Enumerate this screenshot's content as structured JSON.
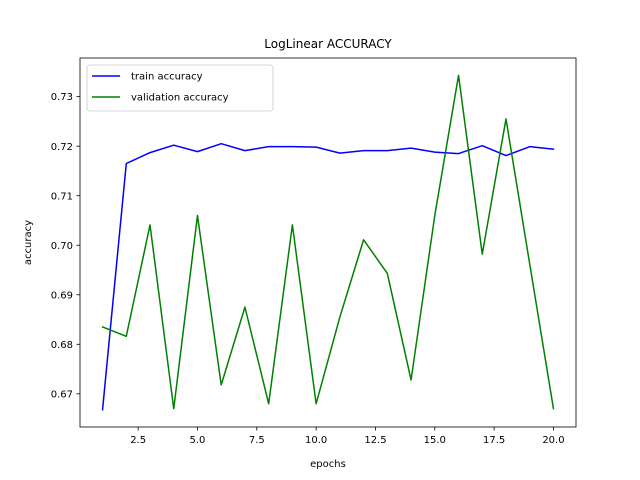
{
  "chart_data": {
    "type": "line",
    "title": "LogLinear ACCURACY",
    "xlabel": "epochs",
    "ylabel": "accuracy",
    "x": [
      1,
      2,
      3,
      4,
      5,
      6,
      7,
      8,
      9,
      10,
      11,
      12,
      13,
      14,
      15,
      16,
      17,
      18,
      19,
      20
    ],
    "xlim": [
      0.05,
      20.95
    ],
    "ylim": [
      0.6633,
      0.7378
    ],
    "xticks": [
      "2.5",
      "5.0",
      "7.5",
      "10.0",
      "12.5",
      "15.0",
      "17.5",
      "20.0"
    ],
    "xtick_values": [
      2.5,
      5.0,
      7.5,
      10.0,
      12.5,
      15.0,
      17.5,
      20.0
    ],
    "yticks": [
      "0.67",
      "0.68",
      "0.69",
      "0.70",
      "0.71",
      "0.72",
      "0.73"
    ],
    "ytick_values": [
      0.67,
      0.68,
      0.69,
      0.7,
      0.71,
      0.72,
      0.73
    ],
    "grid": false,
    "legend": "top-left",
    "series": [
      {
        "name": "train accuracy",
        "color": "#0000ff",
        "values": [
          0.6668,
          0.7165,
          0.7187,
          0.7202,
          0.7189,
          0.7205,
          0.7191,
          0.7199,
          0.7199,
          0.7198,
          0.7186,
          0.7191,
          0.7191,
          0.7196,
          0.7188,
          0.7185,
          0.7201,
          0.7181,
          0.7199,
          0.7194
        ]
      },
      {
        "name": "validation accuracy",
        "color": "#008000",
        "values": [
          0.6835,
          0.6816,
          0.7041,
          0.667,
          0.706,
          0.6718,
          0.6875,
          0.668,
          0.7041,
          0.668,
          0.6855,
          0.7011,
          0.6943,
          0.6728,
          0.706,
          0.7343,
          0.6982,
          0.7255,
          0.6962,
          0.667
        ]
      }
    ]
  }
}
